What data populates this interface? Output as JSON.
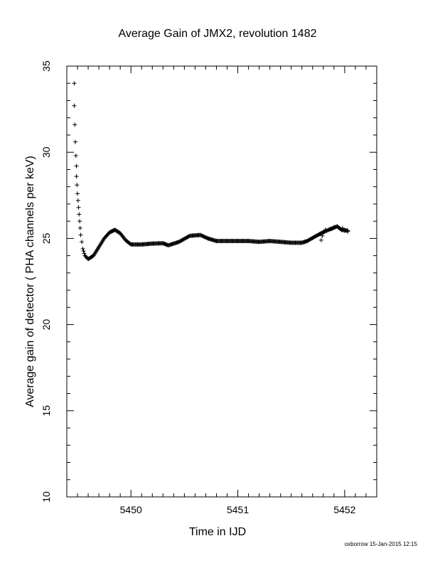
{
  "chart_data": {
    "type": "scatter",
    "title": "Average Gain of JMX2, revolution 1482",
    "xlabel": "Time in IJD",
    "ylabel": "Average gain of detector ( PHA channels per keV)",
    "xlim": [
      5449.4,
      5452.3
    ],
    "ylim": [
      10,
      35
    ],
    "x_ticks": [
      5450,
      5451,
      5452
    ],
    "y_ticks": [
      10,
      15,
      20,
      25,
      30,
      35
    ],
    "grid": false,
    "marker": "+",
    "marker_color": "#000000",
    "curve_points": [
      [
        5449.47,
        34.0
      ],
      [
        5449.47,
        32.7
      ],
      [
        5449.475,
        31.6
      ],
      [
        5449.48,
        30.6
      ],
      [
        5449.485,
        29.8
      ],
      [
        5449.49,
        29.2
      ],
      [
        5449.49,
        28.6
      ],
      [
        5449.495,
        28.1
      ],
      [
        5449.5,
        27.6
      ],
      [
        5449.505,
        27.2
      ],
      [
        5449.51,
        26.8
      ],
      [
        5449.515,
        26.4
      ],
      [
        5449.52,
        26.0
      ],
      [
        5449.525,
        25.6
      ],
      [
        5449.53,
        25.2
      ],
      [
        5449.54,
        24.8
      ],
      [
        5449.55,
        24.4
      ],
      [
        5449.57,
        24.0
      ],
      [
        5449.6,
        23.8
      ],
      [
        5449.65,
        24.0
      ],
      [
        5449.7,
        24.5
      ],
      [
        5449.75,
        25.0
      ],
      [
        5449.8,
        25.35
      ],
      [
        5449.85,
        25.5
      ],
      [
        5449.9,
        25.3
      ],
      [
        5449.95,
        24.9
      ],
      [
        5450.0,
        24.65
      ],
      [
        5450.1,
        24.65
      ],
      [
        5450.2,
        24.7
      ],
      [
        5450.3,
        24.72
      ],
      [
        5450.35,
        24.6
      ],
      [
        5450.45,
        24.8
      ],
      [
        5450.55,
        25.15
      ],
      [
        5450.65,
        25.2
      ],
      [
        5450.72,
        25.0
      ],
      [
        5450.8,
        24.85
      ],
      [
        5450.9,
        24.85
      ],
      [
        5451.0,
        24.85
      ],
      [
        5451.1,
        24.85
      ],
      [
        5451.2,
        24.8
      ],
      [
        5451.3,
        24.85
      ],
      [
        5451.4,
        24.8
      ],
      [
        5451.5,
        24.75
      ],
      [
        5451.6,
        24.75
      ],
      [
        5451.65,
        24.85
      ],
      [
        5451.72,
        25.1
      ],
      [
        5451.78,
        25.3
      ],
      [
        5451.85,
        25.5
      ],
      [
        5451.93,
        25.7
      ],
      [
        5451.97,
        25.5
      ],
      [
        5452.03,
        25.45
      ]
    ],
    "scattered_points": [
      [
        5451.78,
        24.9
      ],
      [
        5451.79,
        25.15
      ],
      [
        5451.8,
        25.35
      ],
      [
        5451.82,
        25.5
      ],
      [
        5451.88,
        25.55
      ],
      [
        5451.9,
        25.65
      ],
      [
        5451.98,
        25.6
      ],
      [
        5452.0,
        25.45
      ],
      [
        5452.03,
        25.4
      ]
    ]
  },
  "footer": {
    "text": "oxborrow 15-Jan-2015 12:15"
  }
}
